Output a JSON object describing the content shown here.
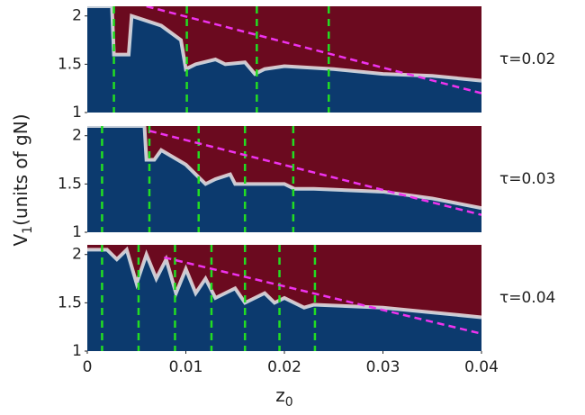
{
  "chart_data": [
    {
      "type": "heatmap",
      "annotation": "τ=0.02",
      "x": [
        0,
        0.0025,
        0.0027,
        0.0042,
        0.0045,
        0.0075,
        0.0095,
        0.01,
        0.011,
        0.013,
        0.014,
        0.016,
        0.017,
        0.018,
        0.02,
        0.025,
        0.03,
        0.035,
        0.04
      ],
      "values": [
        2.1,
        2.1,
        1.6,
        1.6,
        2.0,
        1.9,
        1.75,
        1.45,
        1.5,
        1.55,
        1.5,
        1.52,
        1.4,
        1.45,
        1.48,
        1.45,
        1.4,
        1.38,
        1.33
      ],
      "vlines": [
        0.0027,
        0.0101,
        0.0172,
        0.0245
      ],
      "dashed_x": [
        0.006,
        0.04
      ],
      "dashed_y": [
        2.1,
        1.2
      ],
      "colors": {
        "above": "#6b0a1f",
        "below": "#0c3a6e",
        "edge": "#f4f4f4",
        "vline": "#22dd22",
        "dashed": "#ee33ee"
      },
      "xlim": [
        0,
        0.04
      ],
      "ylim": [
        1,
        2.1
      ],
      "yticks": [
        1,
        1.5,
        2
      ]
    },
    {
      "type": "heatmap",
      "annotation": "τ=0.03",
      "x": [
        0,
        0.0058,
        0.006,
        0.0068,
        0.0075,
        0.01,
        0.011,
        0.012,
        0.013,
        0.0145,
        0.015,
        0.016,
        0.02,
        0.021,
        0.023,
        0.03,
        0.035,
        0.04
      ],
      "values": [
        2.1,
        2.1,
        1.75,
        1.75,
        1.85,
        1.7,
        1.6,
        1.5,
        1.55,
        1.6,
        1.5,
        1.5,
        1.5,
        1.45,
        1.45,
        1.42,
        1.35,
        1.25
      ],
      "vlines": [
        0.0015,
        0.0063,
        0.0113,
        0.016,
        0.0209
      ],
      "dashed_x": [
        0.0063,
        0.04
      ],
      "dashed_y": [
        2.05,
        1.18
      ],
      "colors": {
        "above": "#6b0a1f",
        "below": "#0c3a6e",
        "edge": "#f4f4f4",
        "vline": "#22dd22",
        "dashed": "#ee33ee"
      },
      "xlim": [
        0,
        0.04
      ],
      "ylim": [
        1,
        2.1
      ],
      "yticks": [
        1,
        1.5,
        2
      ],
      "ylabel": "V",
      "ylabel_sub": "1",
      "ylabel_rest": "(units of gN)"
    },
    {
      "type": "heatmap",
      "annotation": "τ=0.04",
      "x": [
        0,
        0.002,
        0.003,
        0.004,
        0.005,
        0.006,
        0.007,
        0.008,
        0.009,
        0.01,
        0.011,
        0.012,
        0.013,
        0.015,
        0.016,
        0.018,
        0.019,
        0.02,
        0.022,
        0.023,
        0.03,
        0.035,
        0.04
      ],
      "values": [
        2.05,
        2.05,
        1.95,
        2.05,
        1.7,
        2.0,
        1.75,
        1.95,
        1.6,
        1.85,
        1.6,
        1.75,
        1.55,
        1.65,
        1.5,
        1.6,
        1.5,
        1.55,
        1.45,
        1.48,
        1.45,
        1.4,
        1.35
      ],
      "vlines": [
        0.0015,
        0.0052,
        0.0089,
        0.0126,
        0.016,
        0.0195,
        0.0231
      ],
      "dashed_x": [
        0.0078,
        0.04
      ],
      "dashed_y": [
        1.97,
        1.18
      ],
      "colors": {
        "above": "#6b0a1f",
        "below": "#0c3a6e",
        "edge": "#f4f4f4",
        "vline": "#22dd22",
        "dashed": "#ee33ee"
      },
      "xlim": [
        0,
        0.04
      ],
      "ylim": [
        1,
        2.1
      ],
      "yticks": [
        1,
        1.5,
        2
      ],
      "xticks": [
        0,
        0.01,
        0.02,
        0.03,
        0.04
      ],
      "xlabel": "z",
      "xlabel_sub": "0"
    }
  ]
}
